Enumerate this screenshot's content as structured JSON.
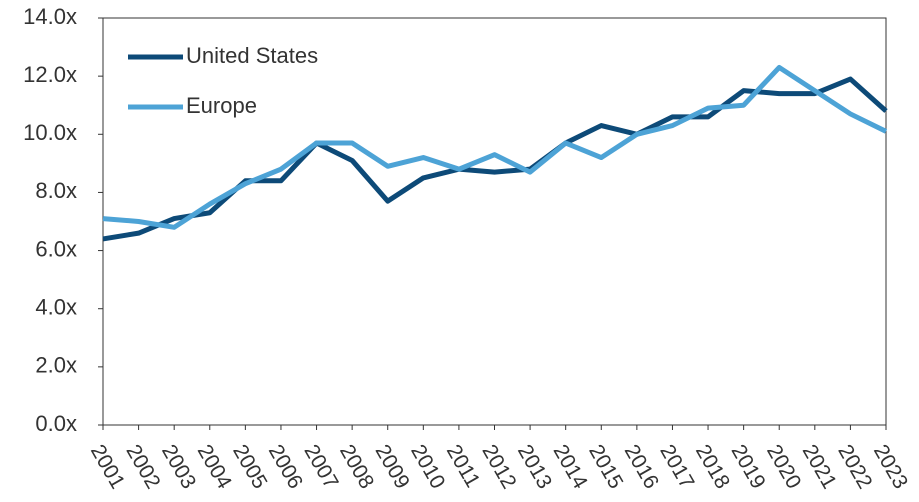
{
  "chart_data": {
    "type": "line",
    "x": [
      "2001",
      "2002",
      "2003",
      "2004",
      "2005",
      "2006",
      "2007",
      "2008",
      "2009",
      "2010",
      "2011",
      "2012",
      "2013",
      "2014",
      "2015",
      "2016",
      "2017",
      "2018",
      "2019",
      "2020",
      "2021",
      "2022",
      "2023"
    ],
    "series": [
      {
        "name": "United States",
        "color": "#0d4a78",
        "values": [
          6.4,
          6.6,
          7.1,
          7.3,
          8.4,
          8.4,
          9.7,
          9.1,
          7.7,
          8.5,
          8.8,
          8.7,
          8.8,
          9.7,
          10.3,
          10.0,
          10.6,
          10.6,
          11.5,
          11.4,
          11.4,
          11.9,
          10.8
        ]
      },
      {
        "name": "Europe",
        "color": "#4da3d6",
        "values": [
          7.1,
          7.0,
          6.8,
          7.6,
          8.3,
          8.8,
          9.7,
          9.7,
          8.9,
          9.2,
          8.8,
          9.3,
          8.7,
          9.7,
          9.2,
          10.0,
          10.3,
          10.9,
          11.0,
          12.3,
          11.5,
          10.7,
          10.1
        ]
      }
    ],
    "ylim": [
      0,
      14
    ],
    "yticks": [
      {
        "value": 0,
        "label": "0.0x"
      },
      {
        "value": 2,
        "label": "2.0x"
      },
      {
        "value": 4,
        "label": "4.0x"
      },
      {
        "value": 6,
        "label": "6.0x"
      },
      {
        "value": 8,
        "label": "8.0x"
      },
      {
        "value": 10,
        "label": "10.0x"
      },
      {
        "value": 12,
        "label": "12.0x"
      },
      {
        "value": 14,
        "label": "14.0x"
      }
    ],
    "grid": false,
    "legend": "upper left"
  }
}
